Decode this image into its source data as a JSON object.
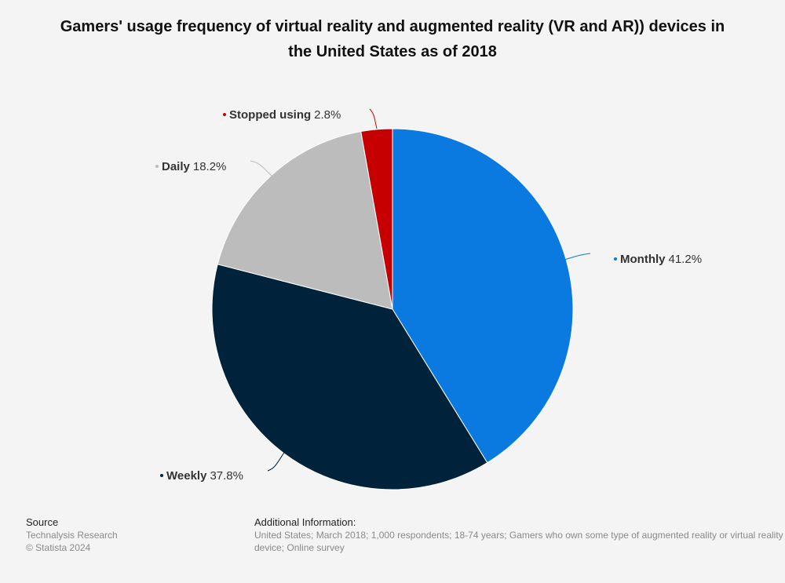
{
  "chart_data": {
    "type": "pie",
    "title": "Gamers' usage frequency of virtual reality and augmented reality (VR and AR)) devices in the United States as of 2018",
    "unit": "%",
    "slices": [
      {
        "label": "Monthly",
        "value": 41.2,
        "value_label": "41.2%",
        "color": "#0a79e0"
      },
      {
        "label": "Weekly",
        "value": 37.8,
        "value_label": "37.8%",
        "color": "#00223a"
      },
      {
        "label": "Daily",
        "value": 18.2,
        "value_label": "18.2%",
        "color": "#bcbcbc"
      },
      {
        "label": "Stopped using",
        "value": 2.8,
        "value_label": "2.8%",
        "color": "#c60000"
      }
    ]
  },
  "footer": {
    "source_heading": "Source",
    "source_name": "Technalysis Research",
    "copyright": "© Statista 2024",
    "additional_heading": "Additional Information:",
    "additional_text": "United States; March 2018; 1,000 respondents; 18-74 years; Gamers who own some type of augmented reality or virtual reality device; Online survey"
  }
}
